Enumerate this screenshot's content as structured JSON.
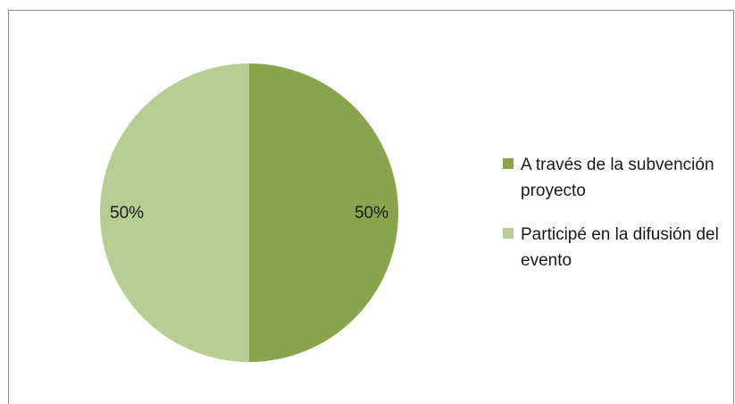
{
  "chart_data": {
    "type": "pie",
    "categories": [
      "A través de la subvención proyecto",
      "Participé en la difusión del evento"
    ],
    "values": [
      50,
      50
    ],
    "colors": [
      "#88a54d",
      "#b8cd94"
    ],
    "data_labels": [
      "50%",
      "50%"
    ],
    "legend": [
      {
        "label": "A través de la subvención proyecto",
        "color": "#88a54d"
      },
      {
        "label": "Participé en la difusión del evento",
        "color": "#b8cd94"
      }
    ],
    "legend_position": "right"
  }
}
